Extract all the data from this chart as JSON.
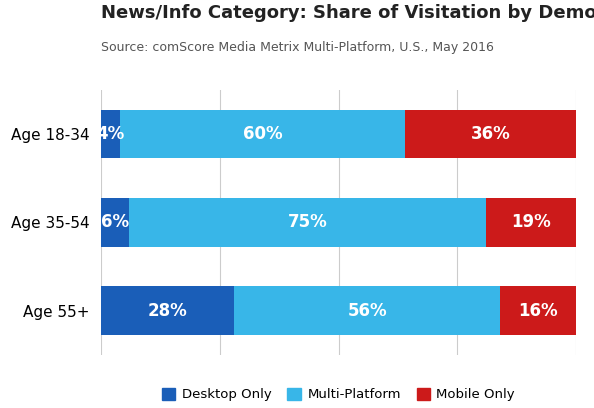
{
  "title": "News/Info Category: Share of Visitation by Demographic",
  "subtitle": "Source: comScore Media Metrix Multi-Platform, U.S., May 2016",
  "categories": [
    "Age 18-34",
    "Age 35-54",
    "Age 55+"
  ],
  "desktop": [
    4,
    6,
    28
  ],
  "multiplatform": [
    60,
    75,
    56
  ],
  "mobile": [
    36,
    19,
    16
  ],
  "colors": {
    "desktop": "#1a5eb8",
    "multiplatform": "#38b6e8",
    "mobile": "#cc1a1a"
  },
  "legend_labels": [
    "Desktop Only",
    "Multi-Platform",
    "Mobile Only"
  ],
  "label_fontsize": 12,
  "title_fontsize": 13,
  "subtitle_fontsize": 9,
  "ytick_fontsize": 11,
  "background_color": "#ffffff",
  "bar_height": 0.55
}
